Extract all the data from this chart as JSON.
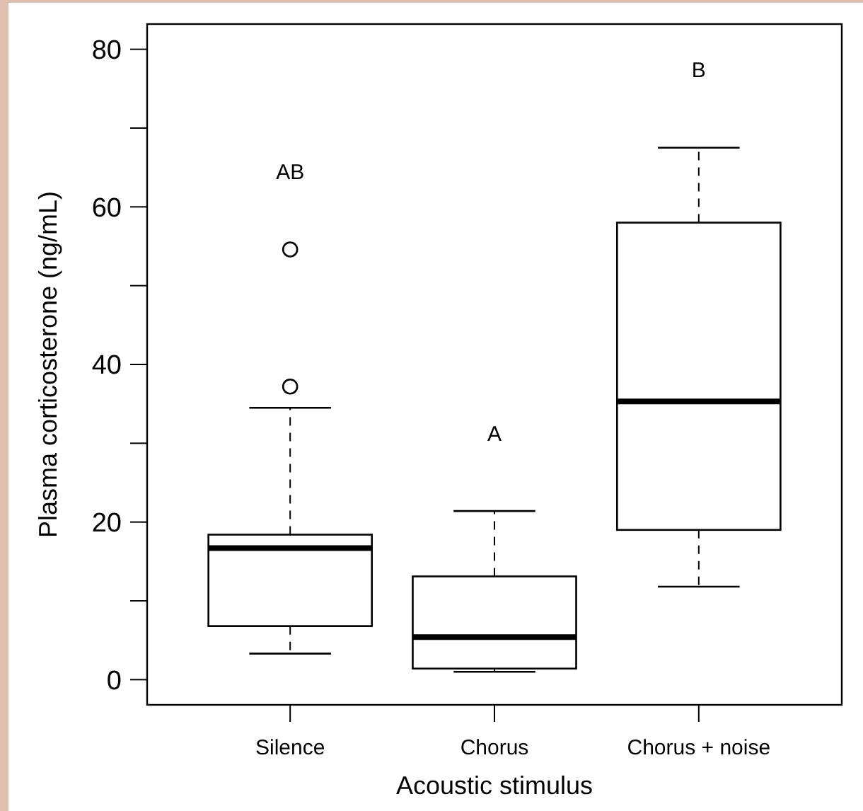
{
  "chart_data": {
    "type": "box",
    "xlabel": "Acoustic stimulus",
    "ylabel": "Plasma corticosterone (ng/mL)",
    "categories": [
      "Silence",
      "Chorus",
      "Chorus + noise"
    ],
    "boxes": [
      {
        "low": 3.3,
        "q1": 6.8,
        "median": 16.7,
        "q3": 18.4,
        "high": 34.5,
        "outliers": [
          37.2,
          54.6
        ]
      },
      {
        "low": 1.0,
        "q1": 1.4,
        "median": 5.4,
        "q3": 13.1,
        "high": 21.4
      },
      {
        "low": 11.8,
        "q1": 19.0,
        "median": 35.3,
        "q3": 58.0,
        "high": 67.5
      }
    ],
    "ylim": [
      -3.2,
      83.2
    ],
    "yticks": [
      0,
      {
        "value": 10,
        "label": null
      },
      20,
      {
        "value": 30,
        "label": null
      },
      40,
      {
        "value": 50,
        "label": null
      },
      60,
      {
        "value": 70,
        "label": null
      },
      80
    ],
    "annotations": [
      "AB",
      "A",
      "B"
    ]
  }
}
